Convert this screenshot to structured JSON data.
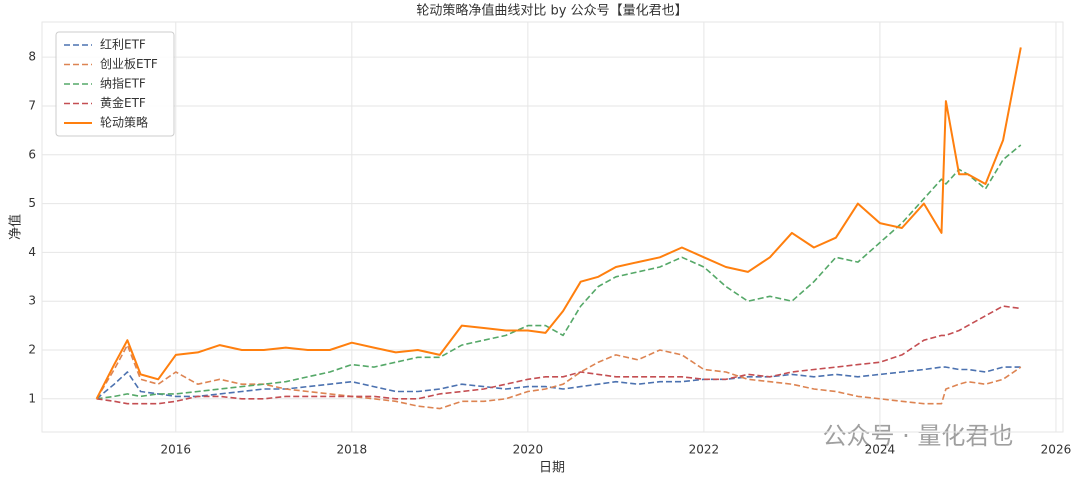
{
  "chart_data": {
    "type": "line",
    "title": "轮动策略净值曲线对比 by 公众号【量化君也】",
    "x_label": "日期",
    "y_label": "净值",
    "watermark": "公众号 · 量化君也",
    "x": [
      2015.1,
      2015.3,
      2015.45,
      2015.6,
      2015.8,
      2016.0,
      2016.25,
      2016.5,
      2016.75,
      2017.0,
      2017.25,
      2017.5,
      2017.75,
      2018.0,
      2018.25,
      2018.5,
      2018.75,
      2019.0,
      2019.25,
      2019.5,
      2019.75,
      2020.0,
      2020.2,
      2020.4,
      2020.6,
      2020.8,
      2021.0,
      2021.25,
      2021.5,
      2021.75,
      2022.0,
      2022.25,
      2022.5,
      2022.75,
      2023.0,
      2023.25,
      2023.5,
      2023.75,
      2024.0,
      2024.25,
      2024.5,
      2024.7,
      2024.75,
      2024.9,
      2025.0,
      2025.2,
      2025.4,
      2025.6
    ],
    "series": [
      {
        "name": "红利ETF",
        "color": "#4c72b0",
        "dashed": true,
        "values": [
          1.0,
          1.3,
          1.55,
          1.15,
          1.1,
          1.05,
          1.05,
          1.1,
          1.15,
          1.2,
          1.2,
          1.25,
          1.3,
          1.35,
          1.25,
          1.15,
          1.15,
          1.2,
          1.3,
          1.25,
          1.2,
          1.25,
          1.25,
          1.2,
          1.25,
          1.3,
          1.35,
          1.3,
          1.35,
          1.35,
          1.4,
          1.4,
          1.45,
          1.45,
          1.5,
          1.45,
          1.5,
          1.45,
          1.5,
          1.55,
          1.6,
          1.65,
          1.65,
          1.6,
          1.6,
          1.55,
          1.65,
          1.65
        ]
      },
      {
        "name": "创业板ETF",
        "color": "#dd8452",
        "dashed": true,
        "values": [
          1.0,
          1.6,
          2.1,
          1.4,
          1.3,
          1.55,
          1.3,
          1.4,
          1.3,
          1.3,
          1.2,
          1.15,
          1.1,
          1.05,
          1.0,
          0.95,
          0.85,
          0.8,
          0.95,
          0.95,
          1.0,
          1.15,
          1.2,
          1.3,
          1.55,
          1.75,
          1.9,
          1.8,
          2.0,
          1.9,
          1.6,
          1.55,
          1.4,
          1.35,
          1.3,
          1.2,
          1.15,
          1.05,
          1.0,
          0.95,
          0.9,
          0.9,
          1.2,
          1.3,
          1.35,
          1.3,
          1.4,
          1.65
        ]
      },
      {
        "name": "纳指ETF",
        "color": "#55a868",
        "dashed": true,
        "values": [
          1.0,
          1.05,
          1.1,
          1.05,
          1.1,
          1.1,
          1.15,
          1.2,
          1.25,
          1.3,
          1.35,
          1.45,
          1.55,
          1.7,
          1.65,
          1.75,
          1.85,
          1.85,
          2.1,
          2.2,
          2.3,
          2.5,
          2.5,
          2.3,
          2.9,
          3.3,
          3.5,
          3.6,
          3.7,
          3.9,
          3.7,
          3.3,
          3.0,
          3.1,
          3.0,
          3.4,
          3.9,
          3.8,
          4.2,
          4.6,
          5.1,
          5.5,
          5.4,
          5.7,
          5.6,
          5.3,
          5.9,
          6.2
        ]
      },
      {
        "name": "黄金ETF",
        "color": "#c44e52",
        "dashed": true,
        "values": [
          1.0,
          0.95,
          0.9,
          0.9,
          0.9,
          0.95,
          1.05,
          1.05,
          1.0,
          1.0,
          1.05,
          1.05,
          1.05,
          1.05,
          1.05,
          1.0,
          1.0,
          1.1,
          1.15,
          1.2,
          1.3,
          1.4,
          1.45,
          1.45,
          1.55,
          1.5,
          1.45,
          1.45,
          1.45,
          1.45,
          1.4,
          1.4,
          1.5,
          1.45,
          1.55,
          1.6,
          1.65,
          1.7,
          1.75,
          1.9,
          2.2,
          2.3,
          2.3,
          2.4,
          2.5,
          2.7,
          2.9,
          2.85
        ]
      },
      {
        "name": "轮动策略",
        "color": "#ff7f0e",
        "dashed": false,
        "values": [
          1.0,
          1.7,
          2.2,
          1.5,
          1.4,
          1.9,
          1.95,
          2.1,
          2.0,
          2.0,
          2.05,
          2.0,
          2.0,
          2.15,
          2.05,
          1.95,
          2.0,
          1.9,
          2.5,
          2.45,
          2.4,
          2.4,
          2.35,
          2.8,
          3.4,
          3.5,
          3.7,
          3.8,
          3.9,
          4.1,
          3.9,
          3.7,
          3.6,
          3.9,
          4.4,
          4.1,
          4.3,
          5.0,
          4.6,
          4.5,
          5.0,
          4.4,
          7.1,
          5.6,
          5.6,
          5.4,
          6.3,
          8.2
        ]
      }
    ],
    "xlim": [
      2014.48,
      2026.08
    ],
    "xticks": [
      2016,
      2018,
      2020,
      2022,
      2024,
      2026
    ],
    "ylim": [
      0.32,
      8.72
    ],
    "yticks": [
      1,
      2,
      3,
      4,
      5,
      6,
      7,
      8
    ],
    "grid": true,
    "legend": "upper-left"
  }
}
